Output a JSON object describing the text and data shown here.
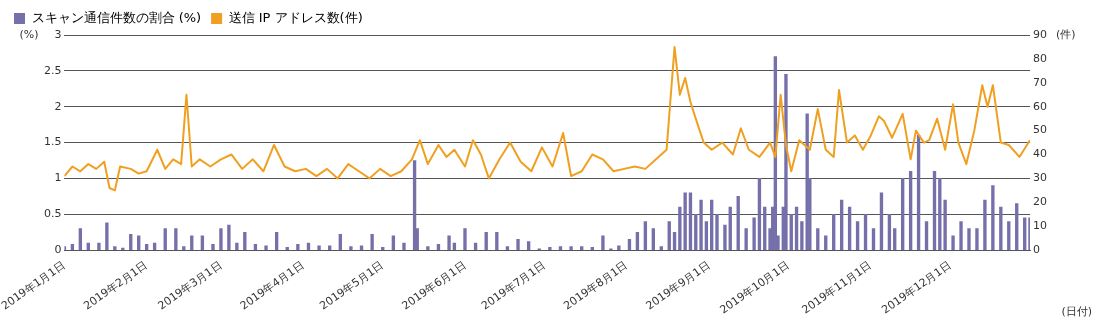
{
  "chart_data": {
    "type": "bar",
    "ylabel": "(%)",
    "y2label": "(件)",
    "xlabel": "(日付)",
    "xlim": [
      "2019-01-01",
      "2019-12-31"
    ],
    "xticks": [
      {
        "value": "2019-01-01",
        "label": "2019年1月1日"
      },
      {
        "value": "2019-02-01",
        "label": "2019年2月1日"
      },
      {
        "value": "2019-03-01",
        "label": "2019年3月1日"
      },
      {
        "value": "2019-04-01",
        "label": "2019年4月1日"
      },
      {
        "value": "2019-05-01",
        "label": "2019年5月1日"
      },
      {
        "value": "2019-06-01",
        "label": "2019年6月1日"
      },
      {
        "value": "2019-07-01",
        "label": "2019年7月1日"
      },
      {
        "value": "2019-08-01",
        "label": "2019年8月1日"
      },
      {
        "value": "2019-09-01",
        "label": "2019年9月1日"
      },
      {
        "value": "2019-10-01",
        "label": "2019年10月1日"
      },
      {
        "value": "2019-11-01",
        "label": "2019年11月1日"
      },
      {
        "value": "2019-12-01",
        "label": "2019年12月1日"
      }
    ],
    "ylim": [
      0,
      3
    ],
    "yticks": [
      0,
      0.5,
      1,
      1.5,
      2,
      2.5,
      3
    ],
    "y2lim": [
      0,
      90
    ],
    "y2ticks": [
      0,
      10,
      20,
      30,
      40,
      50,
      60,
      70,
      80,
      90
    ],
    "grid": "y",
    "legend": "top left",
    "series": [
      {
        "name": "スキャン通信件数の割合 (%)",
        "color": "#7570aa",
        "x": [
          "2019-01-01",
          "2019-01-04",
          "2019-01-07",
          "2019-01-10",
          "2019-01-14",
          "2019-01-17",
          "2019-01-20",
          "2019-01-23",
          "2019-01-26",
          "2019-01-29",
          "2019-02-01",
          "2019-02-04",
          "2019-02-08",
          "2019-02-12",
          "2019-02-15",
          "2019-02-18",
          "2019-02-22",
          "2019-02-26",
          "2019-03-01",
          "2019-03-04",
          "2019-03-07",
          "2019-03-10",
          "2019-03-14",
          "2019-03-18",
          "2019-03-22",
          "2019-03-26",
          "2019-03-30",
          "2019-04-03",
          "2019-04-07",
          "2019-04-11",
          "2019-04-15",
          "2019-04-19",
          "2019-04-23",
          "2019-04-27",
          "2019-05-01",
          "2019-05-05",
          "2019-05-09",
          "2019-05-13",
          "2019-05-14",
          "2019-05-18",
          "2019-05-22",
          "2019-05-26",
          "2019-05-28",
          "2019-06-01",
          "2019-06-05",
          "2019-06-09",
          "2019-06-13",
          "2019-06-17",
          "2019-06-21",
          "2019-06-25",
          "2019-06-29",
          "2019-07-03",
          "2019-07-07",
          "2019-07-11",
          "2019-07-15",
          "2019-07-19",
          "2019-07-23",
          "2019-07-26",
          "2019-07-29",
          "2019-08-02",
          "2019-08-05",
          "2019-08-08",
          "2019-08-11",
          "2019-08-14",
          "2019-08-17",
          "2019-08-19",
          "2019-08-21",
          "2019-08-23",
          "2019-08-25",
          "2019-08-27",
          "2019-08-29",
          "2019-08-31",
          "2019-09-02",
          "2019-09-04",
          "2019-09-07",
          "2019-09-09",
          "2019-09-12",
          "2019-09-15",
          "2019-09-18",
          "2019-09-20",
          "2019-09-22",
          "2019-09-24",
          "2019-09-25",
          "2019-09-26",
          "2019-09-27",
          "2019-09-29",
          "2019-09-30",
          "2019-10-02",
          "2019-10-04",
          "2019-10-06",
          "2019-10-08",
          "2019-10-09",
          "2019-10-12",
          "2019-10-15",
          "2019-10-18",
          "2019-10-21",
          "2019-10-24",
          "2019-10-27",
          "2019-10-30",
          "2019-11-02",
          "2019-11-05",
          "2019-11-08",
          "2019-11-10",
          "2019-11-13",
          "2019-11-16",
          "2019-11-19",
          "2019-11-22",
          "2019-11-25",
          "2019-11-27",
          "2019-11-29",
          "2019-12-02",
          "2019-12-05",
          "2019-12-08",
          "2019-12-11",
          "2019-12-14",
          "2019-12-17",
          "2019-12-20",
          "2019-12-23",
          "2019-12-26",
          "2019-12-29",
          "2019-12-31"
        ],
        "values": [
          0.05,
          0.08,
          0.3,
          0.1,
          0.1,
          0.38,
          0.05,
          0.03,
          0.22,
          0.2,
          0.08,
          0.1,
          0.3,
          0.3,
          0.05,
          0.2,
          0.2,
          0.08,
          0.3,
          0.35,
          0.1,
          0.25,
          0.08,
          0.06,
          0.25,
          0.04,
          0.08,
          0.1,
          0.06,
          0.06,
          0.22,
          0.05,
          0.06,
          0.22,
          0.04,
          0.2,
          0.1,
          1.25,
          0.3,
          0.05,
          0.08,
          0.2,
          0.1,
          0.3,
          0.1,
          0.25,
          0.25,
          0.05,
          0.15,
          0.12,
          0.02,
          0.04,
          0.05,
          0.05,
          0.05,
          0.04,
          0.2,
          0.02,
          0.06,
          0.15,
          0.25,
          0.4,
          0.3,
          0.05,
          0.4,
          0.25,
          0.6,
          0.8,
          0.8,
          0.5,
          0.7,
          0.4,
          0.7,
          0.5,
          0.35,
          0.6,
          0.75,
          0.3,
          0.45,
          1.0,
          0.6,
          0.3,
          0.6,
          2.7,
          0.2,
          0.6,
          2.45,
          0.5,
          0.6,
          0.4,
          1.9,
          1.0,
          0.3,
          0.2,
          0.5,
          0.7,
          0.6,
          0.4,
          0.5,
          0.3,
          0.8,
          0.5,
          0.3,
          1.0,
          1.1,
          1.6,
          0.4,
          1.1,
          1.0,
          0.7,
          0.2,
          0.4,
          0.3,
          0.3,
          0.7,
          0.9,
          0.6,
          0.4,
          0.65,
          0.45,
          0.45
        ]
      },
      {
        "name": "送信 IP アドレス数(件)",
        "type": "line",
        "axis": "y2",
        "color": "#f0a020",
        "x": [
          "2019-01-01",
          "2019-01-04",
          "2019-01-07",
          "2019-01-10",
          "2019-01-13",
          "2019-01-16",
          "2019-01-18",
          "2019-01-20",
          "2019-01-22",
          "2019-01-26",
          "2019-01-29",
          "2019-02-01",
          "2019-02-05",
          "2019-02-08",
          "2019-02-11",
          "2019-02-14",
          "2019-02-16",
          "2019-02-18",
          "2019-02-21",
          "2019-02-25",
          "2019-03-01",
          "2019-03-05",
          "2019-03-09",
          "2019-03-13",
          "2019-03-17",
          "2019-03-21",
          "2019-03-25",
          "2019-03-29",
          "2019-04-02",
          "2019-04-06",
          "2019-04-10",
          "2019-04-14",
          "2019-04-18",
          "2019-04-22",
          "2019-04-26",
          "2019-04-30",
          "2019-05-04",
          "2019-05-08",
          "2019-05-12",
          "2019-05-15",
          "2019-05-18",
          "2019-05-22",
          "2019-05-25",
          "2019-05-28",
          "2019-06-01",
          "2019-06-04",
          "2019-06-07",
          "2019-06-10",
          "2019-06-14",
          "2019-06-18",
          "2019-06-22",
          "2019-06-26",
          "2019-06-30",
          "2019-07-04",
          "2019-07-08",
          "2019-07-11",
          "2019-07-15",
          "2019-07-19",
          "2019-07-23",
          "2019-07-27",
          "2019-07-31",
          "2019-08-04",
          "2019-08-08",
          "2019-08-12",
          "2019-08-16",
          "2019-08-19",
          "2019-08-21",
          "2019-08-23",
          "2019-08-25",
          "2019-08-27",
          "2019-08-30",
          "2019-09-02",
          "2019-09-06",
          "2019-09-10",
          "2019-09-13",
          "2019-09-16",
          "2019-09-20",
          "2019-09-24",
          "2019-09-26",
          "2019-09-28",
          "2019-09-30",
          "2019-10-02",
          "2019-10-05",
          "2019-10-09",
          "2019-10-12",
          "2019-10-15",
          "2019-10-18",
          "2019-10-20",
          "2019-10-23",
          "2019-10-26",
          "2019-10-29",
          "2019-11-01",
          "2019-11-04",
          "2019-11-06",
          "2019-11-09",
          "2019-11-13",
          "2019-11-16",
          "2019-11-18",
          "2019-11-21",
          "2019-11-23",
          "2019-11-26",
          "2019-11-29",
          "2019-12-02",
          "2019-12-04",
          "2019-12-07",
          "2019-12-10",
          "2019-12-13",
          "2019-12-15",
          "2019-12-17",
          "2019-12-20",
          "2019-12-23",
          "2019-12-27",
          "2019-12-31"
        ],
        "values": [
          31,
          35,
          33,
          36,
          34,
          37,
          26,
          25,
          35,
          34,
          32,
          33,
          42,
          34,
          38,
          36,
          65,
          35,
          38,
          35,
          38,
          40,
          34,
          38,
          33,
          44,
          35,
          33,
          34,
          31,
          34,
          30,
          36,
          33,
          30,
          34,
          31,
          33,
          38,
          46,
          36,
          44,
          39,
          42,
          35,
          46,
          40,
          30,
          38,
          45,
          37,
          33,
          43,
          35,
          49,
          31,
          33,
          40,
          38,
          33,
          34,
          35,
          34,
          38,
          42,
          85,
          65,
          72,
          62,
          55,
          45,
          42,
          45,
          40,
          51,
          42,
          39,
          45,
          39,
          65,
          44,
          33,
          46,
          42,
          59,
          42,
          39,
          67,
          45,
          48,
          42,
          48,
          56,
          54,
          47,
          57,
          38,
          50,
          45,
          46,
          55,
          42,
          61,
          45,
          36,
          50,
          69,
          60,
          69,
          45,
          44,
          39,
          46
        ]
      }
    ]
  }
}
